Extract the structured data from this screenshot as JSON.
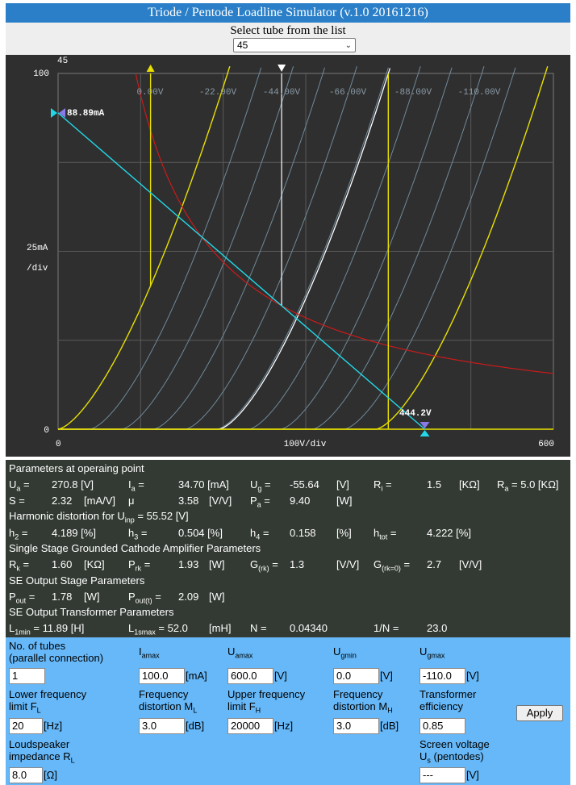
{
  "app": {
    "title": "Triode / Pentode Loadline Simulator (v.1.0 20161216)"
  },
  "tube_select": {
    "label": "Select tube from the list",
    "value": "45"
  },
  "colors": {
    "title_bar": "#2a7fc8",
    "chart_bg": "#2f2f2f",
    "params_bg": "#333a33",
    "inputs_bg": "#66b8f8",
    "loadline": "#22d8e8",
    "power_hyperbola": "#cc1a1a",
    "limit_curves": "#e8e000",
    "operating_curve": "#ffffff",
    "grid_curves": "#6f8a9a"
  },
  "chart": {
    "tube_label": "45",
    "y_top_label": "100",
    "y_bottom_label": "0",
    "y_scale_line1": "25mA",
    "y_scale_line2": "/div",
    "x_left_label": "0",
    "x_center_label": "100V/div",
    "x_right_label": "600",
    "current_marker": "88.89mA",
    "voltage_marker": "444.2V",
    "curve_labels": [
      "0.00V",
      "-22.00V",
      "-44.00V",
      "-66.00V",
      "-88.00V",
      "-110.00V"
    ]
  },
  "chart_data": {
    "type": "line",
    "title": "",
    "xlabel": "100V/div",
    "ylabel": "25mA /div",
    "xlim": [
      0,
      600
    ],
    "ylim": [
      0,
      100
    ],
    "grid": true,
    "grid_curves": [
      {
        "name": "0.00V",
        "ug": 0
      },
      {
        "name": "-22.00V",
        "ug": -22
      },
      {
        "name": "-44.00V",
        "ug": -44
      },
      {
        "name": "-66.00V",
        "ug": -66
      },
      {
        "name": "-88.00V",
        "ug": -88
      },
      {
        "name": "-110.00V",
        "ug": -110
      }
    ],
    "intermediate_curves_ug": [
      -11,
      -33,
      -55,
      -77,
      -99
    ],
    "operating_curve_ug": -55.64,
    "loadline": {
      "x": [
        0,
        444.2
      ],
      "y": [
        88.89,
        0
      ]
    },
    "operating_point": {
      "ua": 270.8,
      "ia": 34.7
    },
    "max_dissipation_w": 9.4,
    "limits": {
      "ia_max": 100,
      "ua_max": 600
    }
  },
  "params": {
    "op_header": "Parameters at operaing point",
    "row1": {
      "ua_label": "U",
      "ua_sub": "a",
      "ua_value": "270.8 [V]",
      "ia_label": "I",
      "ia_sub": "a",
      "ia_value": "34.70 [mA]",
      "ug_label": "U",
      "ug_sub": "g",
      "ug_value": "-55.64",
      "ug_unit": "[V]",
      "ri_label": "R",
      "ri_sub": "i",
      "ri_value": "1.5",
      "ri_unit": "[KΩ]",
      "ra_label": "R",
      "ra_sub": "a",
      "ra_value": "= 5.0 [KΩ]"
    },
    "row2": {
      "s_label": "S =",
      "s_value": "2.32",
      "s_unit": "[mA/V]",
      "mu_label": "μ",
      "mu_value": "3.58",
      "mu_unit": "[V/V]",
      "pa_label": "P",
      "pa_sub": "a",
      "pa_value": "9.40",
      "pa_unit": "[W]"
    },
    "hd_header": "Harmonic distortion for U",
    "hd_sub": "inp",
    "hd_value": " = 55.52 [V]",
    "row3": {
      "h2_label": "h",
      "h2_sub": "2",
      "h2_value": "4.189 [%]",
      "h3_label": "h",
      "h3_sub": "3",
      "h3_value": "0.504 [%]",
      "h4_label": "h",
      "h4_sub": "4",
      "h4_value": "0.158",
      "h4_unit": "[%]",
      "htot_label": "h",
      "htot_sub": "tot",
      "htot_value": "4.222 [%]"
    },
    "se_header": "Single Stage Grounded Cathode Amplifier Parameters",
    "row4": {
      "rk_label": "R",
      "rk_sub": "k",
      "rk_value": "1.60",
      "rk_unit": "[KΩ]",
      "prk_label": "P",
      "prk_sub": "rk",
      "prk_value": "1.93",
      "prk_unit": "[W]",
      "grk_label": "G",
      "grk_sub": "(rk)",
      "grk_value": "1.3",
      "grk_unit": "[V/V]",
      "grk0_label": "G",
      "grk0_sub": "(rk=0)",
      "grk0_value": "2.7",
      "grk0_unit": "[V/V]"
    },
    "out_header": "SE Output Stage Parameters",
    "row5": {
      "pout_label": "P",
      "pout_sub": "out",
      "pout_value": "1.78",
      "pout_unit": "[W]",
      "pout_t_label": "P",
      "pout_t_sub": "out(t)",
      "pout_t_value": "2.09",
      "pout_t_unit": "[W]"
    },
    "tr_header": "SE Output Transformer Parameters",
    "row6": {
      "l1min_label": "L",
      "l1min_sub": "1min",
      "l1min_value": "= 11.89 [H]",
      "l1smax_label": "L",
      "l1smax_sub": "1smax",
      "l1smax_value": "= 52.0",
      "l1smax_unit": "[mH]",
      "n_label": "N =",
      "n_value": "0.04340",
      "inv_n_label": "1/N =",
      "inv_n_value": "23.0"
    }
  },
  "inputs": {
    "tubes": {
      "label1": "No. of tubes",
      "label2": "(parallel connection)",
      "value": "1"
    },
    "ia_max": {
      "label": "I",
      "sub": "amax",
      "value": "100.0",
      "unit": "[mA]"
    },
    "ua_max": {
      "label": "U",
      "sub": "amax",
      "value": "600.0",
      "unit": "[V]"
    },
    "ug_min": {
      "label": "U",
      "sub": "gmin",
      "value": "0.0",
      "unit": "[V]"
    },
    "ug_max": {
      "label": "U",
      "sub": "gmax",
      "value": "-110.0",
      "unit": "[V]"
    },
    "fl": {
      "label1": "Lower frequency",
      "label2": "limit F",
      "sub": "L",
      "value": "20",
      "unit": "[Hz]"
    },
    "ml": {
      "label1": "Frequency",
      "label2": "distortion M",
      "sub": "L",
      "value": "3.0",
      "unit": "[dB]"
    },
    "fh": {
      "label1": "Upper frequency",
      "label2": "limit F",
      "sub": "H",
      "value": "20000",
      "unit": "[Hz]"
    },
    "mh": {
      "label1": "Frequency",
      "label2": "distortion M",
      "sub": "H",
      "value": "3.0",
      "unit": "[dB]"
    },
    "eff": {
      "label1": "Transformer",
      "label2": "efficiency",
      "value": "0.85"
    },
    "rl": {
      "label1": "Loudspeaker",
      "label2": "impedance R",
      "sub": "L",
      "value": "8.0",
      "unit": "[Ω]"
    },
    "us": {
      "label1": "Screen voltage",
      "label2": "U",
      "sub": "s",
      "label2_rest": " (pentodes)",
      "value": "---",
      "unit": "[V]"
    },
    "apply_label": "Apply"
  }
}
